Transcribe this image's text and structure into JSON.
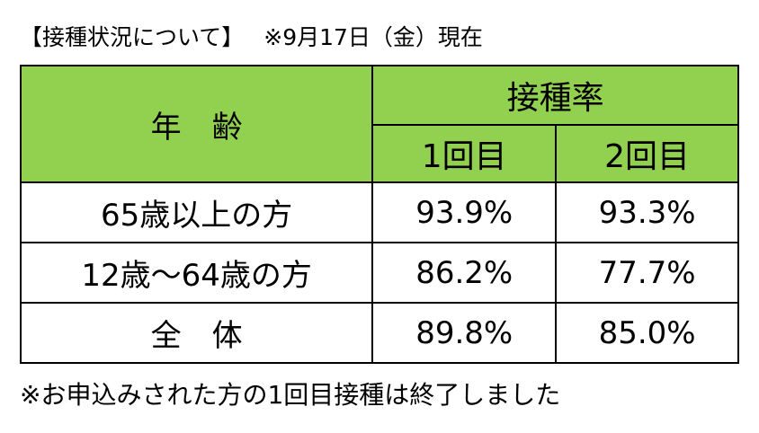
{
  "header": {
    "title": "【接種状況について】",
    "note": "※9月17日（金）現在"
  },
  "table": {
    "header": {
      "age": "年　齢",
      "rate": "接種率",
      "dose1": "1回目",
      "dose2": "2回目"
    },
    "rows": [
      [
        "65歳以上の方",
        "93.9%",
        "93.3%"
      ],
      [
        "12歳～64歳の方",
        "86.2%",
        "77.7%"
      ],
      [
        "全　体",
        "89.8%",
        "85.0%"
      ]
    ]
  },
  "footer": {
    "note": "※お申込みされた方の1回目接種は終了しました"
  }
}
